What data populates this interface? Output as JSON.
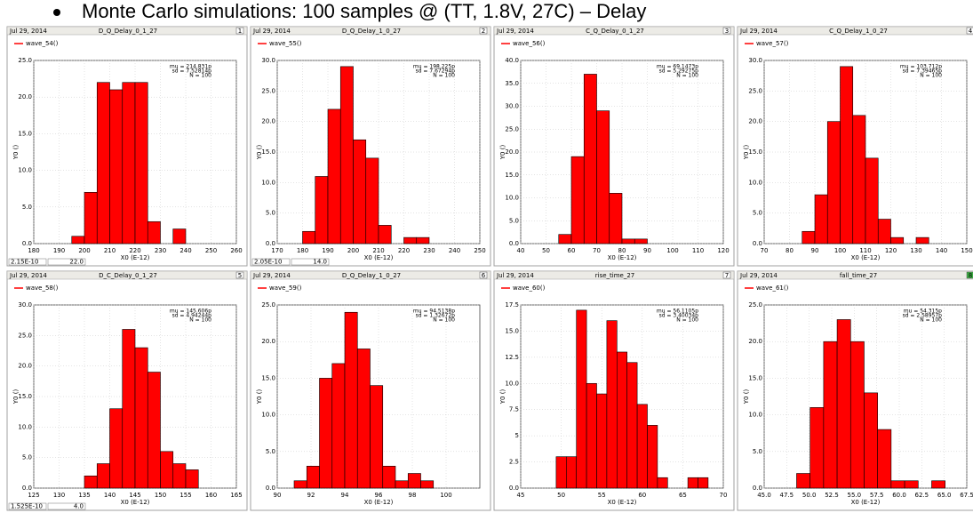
{
  "heading": "Monte Carlo simulations: 100 samples @ (TT, 1.8V, 27C) – Delay",
  "chart_data": [
    {
      "type": "histogram",
      "date": "Jul 29, 2014",
      "title": "D_Q_Delay_0_1_27",
      "panel": "1",
      "bins": [
        195,
        200,
        205,
        210,
        215,
        220,
        225,
        230,
        235,
        240
      ],
      "series": [
        {
          "name": "wave_54()",
          "color": "#ff0000",
          "values": [
            1,
            7,
            22,
            21,
            22,
            22,
            3,
            0,
            2
          ]
        }
      ],
      "stats": [
        "mu = 214.831p",
        "sd = 7.52814p",
        "N = 100"
      ],
      "xlabel": "X0 (E-12)",
      "ylabel": "Y0 ()",
      "xlim": [
        180,
        260
      ],
      "xticks": [
        180,
        190,
        200,
        210,
        220,
        230,
        240,
        250,
        260
      ],
      "ylim": [
        0,
        25
      ],
      "yticks": [
        {
          "value": 0,
          "label": "0.0"
        },
        {
          "value": 5,
          "label": "5.0"
        },
        {
          "value": 10,
          "label": "10.0"
        },
        {
          "value": 15,
          "label": "15.0"
        },
        {
          "value": 20,
          "label": "20.0"
        },
        {
          "value": 25,
          "label": "25.0"
        }
      ],
      "grid": true,
      "cursor": [
        "2.15E-10",
        "22.0"
      ]
    },
    {
      "type": "histogram",
      "date": "Jul 29, 2014",
      "title": "D_Q_Delay_1_0_27",
      "panel": "2",
      "bins": [
        180,
        185,
        190,
        195,
        200,
        205,
        210,
        215,
        220,
        225,
        230
      ],
      "series": [
        {
          "name": "wave_55()",
          "color": "#ff0000",
          "values": [
            2,
            11,
            22,
            29,
            17,
            14,
            3,
            0,
            1,
            1
          ]
        }
      ],
      "stats": [
        "mu = 198.225p",
        "sd = 7.67294p",
        "N = 100"
      ],
      "xlabel": "X0 (E-12)",
      "ylabel": "Y0 ()",
      "xlim": [
        170,
        250
      ],
      "xticks": [
        170,
        180,
        190,
        200,
        210,
        220,
        230,
        240,
        250
      ],
      "ylim": [
        0,
        30
      ],
      "yticks": [
        {
          "value": 0,
          "label": "0.0"
        },
        {
          "value": 5,
          "label": "5.0"
        },
        {
          "value": 10,
          "label": "10.0"
        },
        {
          "value": 15,
          "label": "15.0"
        },
        {
          "value": 20,
          "label": "20.0"
        },
        {
          "value": 25,
          "label": "25.0"
        },
        {
          "value": 30,
          "label": "30.0"
        }
      ],
      "grid": true,
      "cursor": [
        "2.05E-10",
        "14.0"
      ]
    },
    {
      "type": "histogram",
      "date": "Jul 29, 2014",
      "title": "C_Q_Delay_0_1_27",
      "panel": "3",
      "bins": [
        55,
        60,
        65,
        70,
        75,
        80,
        85,
        90
      ],
      "series": [
        {
          "name": "wave_56()",
          "color": "#ff0000",
          "values": [
            2,
            19,
            37,
            29,
            11,
            1,
            1
          ]
        }
      ],
      "stats": [
        "mu = 69.1473p",
        "sd = 5.29275p",
        "N = 100"
      ],
      "xlabel": "X0 (E-12)",
      "ylabel": "Y0 ()",
      "xlim": [
        40,
        120
      ],
      "xticks": [
        40,
        50,
        60,
        70,
        80,
        90,
        100,
        110,
        120
      ],
      "ylim": [
        0,
        40
      ],
      "yticks": [
        {
          "value": 0,
          "label": "0.0"
        },
        {
          "value": 5,
          "label": "5.0"
        },
        {
          "value": 10,
          "label": "10.0"
        },
        {
          "value": 15,
          "label": "15.0"
        },
        {
          "value": 20,
          "label": "20.0"
        },
        {
          "value": 25,
          "label": "25.0"
        },
        {
          "value": 30,
          "label": "30.0"
        },
        {
          "value": 35,
          "label": "35.0"
        },
        {
          "value": 40,
          "label": "40.0"
        }
      ],
      "grid": true
    },
    {
      "type": "histogram",
      "date": "Jul 29, 2014",
      "title": "C_Q_Delay_1_0_27",
      "panel": "4",
      "bins": [
        85,
        90,
        95,
        100,
        105,
        110,
        115,
        120,
        125,
        130,
        135
      ],
      "series": [
        {
          "name": "wave_57()",
          "color": "#ff0000",
          "values": [
            2,
            8,
            20,
            29,
            21,
            14,
            4,
            1,
            0,
            1
          ]
        }
      ],
      "stats": [
        "mu = 103.712p",
        "sd = 7.39465p",
        "N = 100"
      ],
      "xlabel": "X0 (E-12)",
      "ylabel": "Y0 ()",
      "xlim": [
        70,
        150
      ],
      "xticks": [
        70,
        80,
        90,
        100,
        110,
        120,
        130,
        140,
        150
      ],
      "ylim": [
        0,
        30
      ],
      "yticks": [
        {
          "value": 0,
          "label": "0.0"
        },
        {
          "value": 5,
          "label": "5.0"
        },
        {
          "value": 10,
          "label": "10.0"
        },
        {
          "value": 15,
          "label": "15.0"
        },
        {
          "value": 20,
          "label": "20.0"
        },
        {
          "value": 25,
          "label": "25.0"
        },
        {
          "value": 30,
          "label": "30.0"
        }
      ],
      "grid": true
    },
    {
      "type": "histogram",
      "date": "Jul 29, 2014",
      "title": "D_C_Delay_0_1_27",
      "panel": "5",
      "bins": [
        135,
        137.5,
        140,
        142.5,
        145,
        147.5,
        150,
        152.5,
        155,
        157.5
      ],
      "series": [
        {
          "name": "wave_58()",
          "color": "#ff0000",
          "values": [
            2,
            4,
            13,
            26,
            23,
            19,
            6,
            4,
            3
          ]
        }
      ],
      "stats": [
        "mu = 145.606p",
        "sd = 4.94244p",
        "N = 100"
      ],
      "xlabel": "X0 (E-12)",
      "ylabel": "Y0 ()",
      "xlim": [
        125,
        165
      ],
      "xticks": [
        125,
        130,
        135,
        140,
        145,
        150,
        155,
        160,
        165
      ],
      "ylim": [
        0,
        30
      ],
      "yticks": [
        {
          "value": 0,
          "label": "0.0"
        },
        {
          "value": 5,
          "label": "5.0"
        },
        {
          "value": 10,
          "label": "10.0"
        },
        {
          "value": 15,
          "label": "15.0"
        },
        {
          "value": 20,
          "label": "20.0"
        },
        {
          "value": 25,
          "label": "25.0"
        },
        {
          "value": 30,
          "label": "30.0"
        }
      ],
      "grid": true,
      "cursor": [
        "1.525E-10",
        "4.0"
      ]
    },
    {
      "type": "histogram",
      "date": "Jul 29, 2014",
      "title": "D_Q_Delay_1_0_27",
      "panel": "6",
      "bins": [
        91,
        91.75,
        92.5,
        93.25,
        94,
        94.75,
        95.5,
        96.25,
        97,
        97.75,
        98.5,
        99.25
      ],
      "series": [
        {
          "name": "wave_59()",
          "color": "#ff0000",
          "values": [
            1,
            3,
            15,
            17,
            24,
            19,
            14,
            3,
            1,
            2,
            1
          ]
        }
      ],
      "stats": [
        "mu = 94.5138p",
        "sd = 1.32672p",
        "N = 100"
      ],
      "xlabel": "X0 (E-12)",
      "ylabel": "Y0 ()",
      "xlim": [
        90,
        102
      ],
      "xticks": [
        90,
        92,
        94,
        96,
        98,
        100
      ],
      "ylim": [
        0,
        25
      ],
      "yticks": [
        {
          "value": 0,
          "label": "0.0"
        },
        {
          "value": 5,
          "label": "5.0"
        },
        {
          "value": 10,
          "label": "10.0"
        },
        {
          "value": 15,
          "label": "15.0"
        },
        {
          "value": 20,
          "label": "20.0"
        },
        {
          "value": 25,
          "label": "25.0"
        }
      ],
      "grid": true
    },
    {
      "type": "histogram",
      "date": "Jul 29, 2014",
      "title": "rise_time_27",
      "panel": "7",
      "bins": [
        49.375,
        50.625,
        51.875,
        53.125,
        54.375,
        55.625,
        56.875,
        58.125,
        59.375,
        60.625,
        61.875,
        63.125,
        64.375,
        65.625,
        66.875,
        68.125
      ],
      "series": [
        {
          "name": "wave_60()",
          "color": "#ff0000",
          "values": [
            3,
            3,
            17,
            10,
            9,
            16,
            13,
            12,
            8,
            6,
            1,
            0,
            0,
            1,
            1
          ]
        }
      ],
      "stats": [
        "mu = 56.1105p",
        "sd = 3.40034p",
        "N = 100"
      ],
      "xlabel": "X0 (E-12)",
      "ylabel": "Y0 ()",
      "xlim": [
        45,
        70
      ],
      "xticks": [
        45,
        50,
        55,
        60,
        65,
        70
      ],
      "ylim": [
        0,
        17.5
      ],
      "yticks": [
        {
          "value": 0,
          "label": "0.0"
        },
        2.5,
        5.0,
        7.5,
        {
          "value": 10,
          "label": "10.0"
        },
        12.5,
        {
          "value": 15,
          "label": "15.0"
        },
        17.5
      ],
      "grid": true
    },
    {
      "type": "histogram",
      "date": "Jul 29, 2014",
      "title": "fall_time_27",
      "panel": "8",
      "bins": [
        48.6,
        50.1,
        51.6,
        53.1,
        54.6,
        56.1,
        57.6,
        59.1,
        60.6,
        62.1,
        63.6,
        65.1
      ],
      "series": [
        {
          "name": "wave_61()",
          "color": "#ff0000",
          "values": [
            2,
            11,
            20,
            23,
            20,
            13,
            8,
            1,
            1,
            0,
            1
          ]
        }
      ],
      "stats": [
        "mu = 54.315p",
        "sd = 2.58957p",
        "N = 100"
      ],
      "xlabel": "X0 (E-12)",
      "ylabel": "Y0 ()",
      "xlim": [
        45,
        67.5
      ],
      "xticks": [
        {
          "value": 45,
          "label": "45.0"
        },
        47.5,
        {
          "value": 50,
          "label": "50.0"
        },
        52.5,
        {
          "value": 55,
          "label": "55.0"
        },
        57.5,
        {
          "value": 60,
          "label": "60.0"
        },
        62.5,
        {
          "value": 65,
          "label": "65.0"
        },
        67.5
      ],
      "ylim": [
        0,
        25
      ],
      "yticks": [
        {
          "value": 0,
          "label": "0.0"
        },
        {
          "value": 5,
          "label": "5.0"
        },
        {
          "value": 10,
          "label": "10.0"
        },
        {
          "value": 15,
          "label": "15.0"
        },
        {
          "value": 20,
          "label": "20.0"
        },
        {
          "value": 25,
          "label": "25.0"
        }
      ],
      "grid": true
    }
  ]
}
